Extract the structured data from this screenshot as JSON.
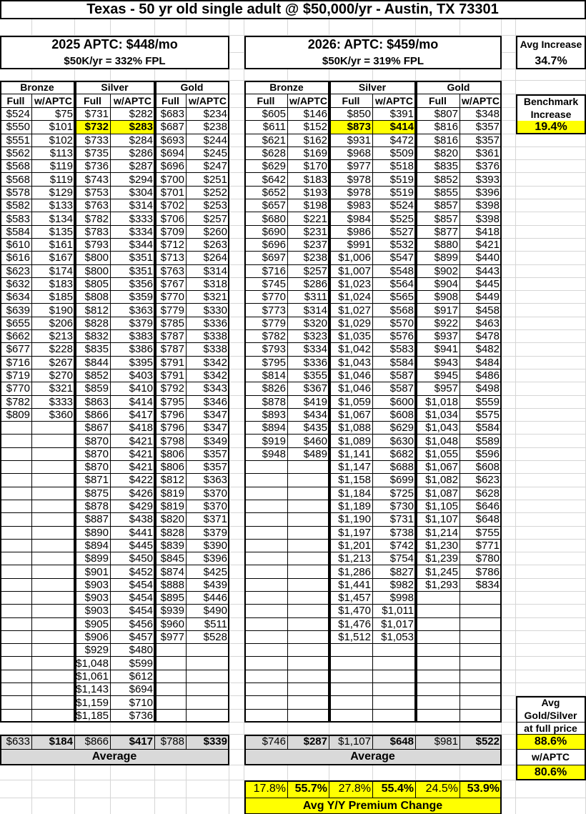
{
  "title": "Texas - 50 yr old single adult @ $50,000/yr - Austin, TX 73301",
  "tier_headers": [
    "Bronze",
    "Silver",
    "Gold"
  ],
  "column_headers": [
    "Full",
    "w/APTC",
    "Full",
    "w/APTC",
    "Full",
    "w/APTC"
  ],
  "highlight_color": "#ffff00",
  "benchmark_row_index": 1,
  "left": {
    "heading": "2025 APTC: $448/mo",
    "subheading": "$50K/yr = 332% FPL",
    "rows": [
      [
        "$524",
        "$75",
        "$731",
        "$282",
        "$683",
        "$234"
      ],
      [
        "$550",
        "$101",
        "$732",
        "$283",
        "$687",
        "$238"
      ],
      [
        "$551",
        "$102",
        "$733",
        "$284",
        "$693",
        "$244"
      ],
      [
        "$562",
        "$113",
        "$735",
        "$286",
        "$694",
        "$245"
      ],
      [
        "$568",
        "$119",
        "$736",
        "$287",
        "$696",
        "$247"
      ],
      [
        "$568",
        "$119",
        "$743",
        "$294",
        "$700",
        "$251"
      ],
      [
        "$578",
        "$129",
        "$753",
        "$304",
        "$701",
        "$252"
      ],
      [
        "$582",
        "$133",
        "$763",
        "$314",
        "$702",
        "$253"
      ],
      [
        "$583",
        "$134",
        "$782",
        "$333",
        "$706",
        "$257"
      ],
      [
        "$584",
        "$135",
        "$783",
        "$334",
        "$709",
        "$260"
      ],
      [
        "$610",
        "$161",
        "$793",
        "$344",
        "$712",
        "$263"
      ],
      [
        "$616",
        "$167",
        "$800",
        "$351",
        "$713",
        "$264"
      ],
      [
        "$623",
        "$174",
        "$800",
        "$351",
        "$763",
        "$314"
      ],
      [
        "$632",
        "$183",
        "$805",
        "$356",
        "$767",
        "$318"
      ],
      [
        "$634",
        "$185",
        "$808",
        "$359",
        "$770",
        "$321"
      ],
      [
        "$639",
        "$190",
        "$812",
        "$363",
        "$779",
        "$330"
      ],
      [
        "$655",
        "$206",
        "$828",
        "$379",
        "$785",
        "$336"
      ],
      [
        "$662",
        "$213",
        "$832",
        "$383",
        "$787",
        "$338"
      ],
      [
        "$677",
        "$228",
        "$835",
        "$386",
        "$787",
        "$338"
      ],
      [
        "$716",
        "$267",
        "$844",
        "$395",
        "$791",
        "$342"
      ],
      [
        "$719",
        "$270",
        "$852",
        "$403",
        "$791",
        "$342"
      ],
      [
        "$770",
        "$321",
        "$859",
        "$410",
        "$792",
        "$343"
      ],
      [
        "$782",
        "$333",
        "$863",
        "$414",
        "$795",
        "$346"
      ],
      [
        "$809",
        "$360",
        "$866",
        "$417",
        "$796",
        "$347"
      ],
      [
        "",
        "",
        "$867",
        "$418",
        "$796",
        "$347"
      ],
      [
        "",
        "",
        "$870",
        "$421",
        "$798",
        "$349"
      ],
      [
        "",
        "",
        "$870",
        "$421",
        "$806",
        "$357"
      ],
      [
        "",
        "",
        "$870",
        "$421",
        "$806",
        "$357"
      ],
      [
        "",
        "",
        "$871",
        "$422",
        "$812",
        "$363"
      ],
      [
        "",
        "",
        "$875",
        "$426",
        "$819",
        "$370"
      ],
      [
        "",
        "",
        "$878",
        "$429",
        "$819",
        "$370"
      ],
      [
        "",
        "",
        "$887",
        "$438",
        "$820",
        "$371"
      ],
      [
        "",
        "",
        "$890",
        "$441",
        "$828",
        "$379"
      ],
      [
        "",
        "",
        "$894",
        "$445",
        "$839",
        "$390"
      ],
      [
        "",
        "",
        "$899",
        "$450",
        "$845",
        "$396"
      ],
      [
        "",
        "",
        "$901",
        "$452",
        "$874",
        "$425"
      ],
      [
        "",
        "",
        "$903",
        "$454",
        "$888",
        "$439"
      ],
      [
        "",
        "",
        "$903",
        "$454",
        "$895",
        "$446"
      ],
      [
        "",
        "",
        "$903",
        "$454",
        "$939",
        "$490"
      ],
      [
        "",
        "",
        "$905",
        "$456",
        "$960",
        "$511"
      ],
      [
        "",
        "",
        "$906",
        "$457",
        "$977",
        "$528"
      ],
      [
        "",
        "",
        "$929",
        "$480",
        "",
        ""
      ],
      [
        "",
        "",
        "$1,048",
        "$599",
        "",
        ""
      ],
      [
        "",
        "",
        "$1,061",
        "$612",
        "",
        ""
      ],
      [
        "",
        "",
        "$1,143",
        "$694",
        "",
        ""
      ],
      [
        "",
        "",
        "$1,159",
        "$710",
        "",
        ""
      ],
      [
        "",
        "",
        "$1,185",
        "$736",
        "",
        ""
      ]
    ],
    "averages": [
      "$633",
      "$184",
      "$866",
      "$417",
      "$788",
      "$339"
    ],
    "average_label": "Average"
  },
  "right": {
    "heading": "2026: APTC: $459/mo",
    "subheading": "$50K/yr = 319% FPL",
    "rows": [
      [
        "$605",
        "$146",
        "$850",
        "$391",
        "$807",
        "$348"
      ],
      [
        "$611",
        "$152",
        "$873",
        "$414",
        "$816",
        "$357"
      ],
      [
        "$621",
        "$162",
        "$931",
        "$472",
        "$816",
        "$357"
      ],
      [
        "$628",
        "$169",
        "$968",
        "$509",
        "$820",
        "$361"
      ],
      [
        "$629",
        "$170",
        "$977",
        "$518",
        "$835",
        "$376"
      ],
      [
        "$642",
        "$183",
        "$978",
        "$519",
        "$852",
        "$393"
      ],
      [
        "$652",
        "$193",
        "$978",
        "$519",
        "$855",
        "$396"
      ],
      [
        "$657",
        "$198",
        "$983",
        "$524",
        "$857",
        "$398"
      ],
      [
        "$680",
        "$221",
        "$984",
        "$525",
        "$857",
        "$398"
      ],
      [
        "$690",
        "$231",
        "$986",
        "$527",
        "$877",
        "$418"
      ],
      [
        "$696",
        "$237",
        "$991",
        "$532",
        "$880",
        "$421"
      ],
      [
        "$697",
        "$238",
        "$1,006",
        "$547",
        "$899",
        "$440"
      ],
      [
        "$716",
        "$257",
        "$1,007",
        "$548",
        "$902",
        "$443"
      ],
      [
        "$745",
        "$286",
        "$1,023",
        "$564",
        "$904",
        "$445"
      ],
      [
        "$770",
        "$311",
        "$1,024",
        "$565",
        "$908",
        "$449"
      ],
      [
        "$773",
        "$314",
        "$1,027",
        "$568",
        "$917",
        "$458"
      ],
      [
        "$779",
        "$320",
        "$1,029",
        "$570",
        "$922",
        "$463"
      ],
      [
        "$782",
        "$323",
        "$1,035",
        "$576",
        "$937",
        "$478"
      ],
      [
        "$793",
        "$334",
        "$1,042",
        "$583",
        "$941",
        "$482"
      ],
      [
        "$795",
        "$336",
        "$1,043",
        "$584",
        "$943",
        "$484"
      ],
      [
        "$814",
        "$355",
        "$1,046",
        "$587",
        "$945",
        "$486"
      ],
      [
        "$826",
        "$367",
        "$1,046",
        "$587",
        "$957",
        "$498"
      ],
      [
        "$878",
        "$419",
        "$1,059",
        "$600",
        "$1,018",
        "$559"
      ],
      [
        "$893",
        "$434",
        "$1,067",
        "$608",
        "$1,034",
        "$575"
      ],
      [
        "$894",
        "$435",
        "$1,088",
        "$629",
        "$1,043",
        "$584"
      ],
      [
        "$919",
        "$460",
        "$1,089",
        "$630",
        "$1,048",
        "$589"
      ],
      [
        "$948",
        "$489",
        "$1,141",
        "$682",
        "$1,055",
        "$596"
      ],
      [
        "",
        "",
        "$1,147",
        "$688",
        "$1,067",
        "$608"
      ],
      [
        "",
        "",
        "$1,158",
        "$699",
        "$1,082",
        "$623"
      ],
      [
        "",
        "",
        "$1,184",
        "$725",
        "$1,087",
        "$628"
      ],
      [
        "",
        "",
        "$1,189",
        "$730",
        "$1,105",
        "$646"
      ],
      [
        "",
        "",
        "$1,190",
        "$731",
        "$1,107",
        "$648"
      ],
      [
        "",
        "",
        "$1,197",
        "$738",
        "$1,214",
        "$755"
      ],
      [
        "",
        "",
        "$1,201",
        "$742",
        "$1,230",
        "$771"
      ],
      [
        "",
        "",
        "$1,213",
        "$754",
        "$1,239",
        "$780"
      ],
      [
        "",
        "",
        "$1,286",
        "$827",
        "$1,245",
        "$786"
      ],
      [
        "",
        "",
        "$1,441",
        "$982",
        "$1,293",
        "$834"
      ],
      [
        "",
        "",
        "$1,457",
        "$998",
        "",
        ""
      ],
      [
        "",
        "",
        "$1,470",
        "$1,011",
        "",
        ""
      ],
      [
        "",
        "",
        "$1,476",
        "$1,017",
        "",
        ""
      ],
      [
        "",
        "",
        "$1,512",
        "$1,053",
        "",
        ""
      ],
      [
        "",
        "",
        "",
        "",
        "",
        ""
      ],
      [
        "",
        "",
        "",
        "",
        "",
        ""
      ],
      [
        "",
        "",
        "",
        "",
        "",
        ""
      ],
      [
        "",
        "",
        "",
        "",
        "",
        ""
      ],
      [
        "",
        "",
        "",
        "",
        "",
        ""
      ],
      [
        "",
        "",
        "",
        "",
        "",
        ""
      ]
    ],
    "averages": [
      "$746",
      "$287",
      "$1,107",
      "$648",
      "$981",
      "$522"
    ],
    "average_label": "Average"
  },
  "yoy": {
    "values": [
      "17.8%",
      "55.7%",
      "27.8%",
      "55.4%",
      "24.5%",
      "53.9%"
    ],
    "label": "Avg Y/Y Premium Change"
  },
  "side": {
    "avg_increase_label": "Avg Increase",
    "avg_increase_value": "34.7%",
    "benchmark_label_1": "Benchmark",
    "benchmark_label_2": "Increase",
    "benchmark_value": "19.4%",
    "gold_silver_label_1": "Avg",
    "gold_silver_label_2": "Gold/Silver",
    "gold_silver_label_3": "at full price",
    "gold_silver_full_value": "88.6%",
    "gold_silver_aptc_label": "w/APTC",
    "gold_silver_aptc_value": "80.6%"
  }
}
